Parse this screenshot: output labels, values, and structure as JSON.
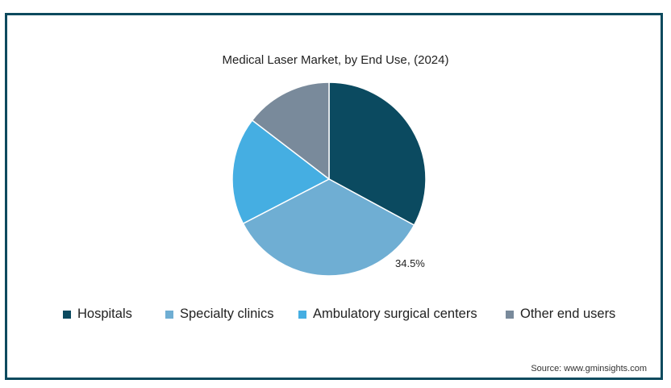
{
  "chart_data": {
    "type": "pie",
    "title": "Medical Laser Market, by End Use, (2024)",
    "categories": [
      "Hospitals",
      "Specialty clinics",
      "Ambulatory surgical centers",
      "Other end users"
    ],
    "values": [
      32.9,
      34.5,
      18.0,
      14.6
    ],
    "unit": "%",
    "data_labels": {
      "Specialty clinics": "34.5%"
    },
    "colors": [
      "#0b4a60",
      "#6faed3",
      "#45aee2",
      "#798a9b"
    ],
    "legend_position": "bottom",
    "start_angle": "top, clockwise"
  },
  "source": "Source: www.gminsights.com"
}
